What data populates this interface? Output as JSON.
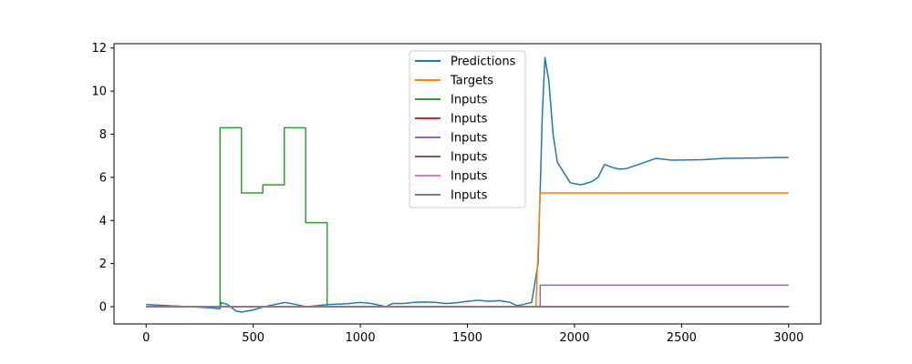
{
  "chart_data": {
    "type": "line",
    "xlim": [
      -150,
      3150
    ],
    "ylim": [
      -0.8,
      12.2
    ],
    "xticks": [
      0,
      500,
      1000,
      1500,
      2000,
      2500,
      3000
    ],
    "yticks": [
      0,
      2,
      4,
      6,
      8,
      10,
      12
    ],
    "xtick_labels": [
      "0",
      "500",
      "1000",
      "1500",
      "2000",
      "2500",
      "3000"
    ],
    "ytick_labels": [
      "0",
      "2",
      "4",
      "6",
      "8",
      "10",
      "12"
    ],
    "grid": false,
    "legend_position": "upper-center",
    "series": [
      {
        "name": "Predictions",
        "color": "#1f77b4",
        "points": [
          [
            0,
            0.1
          ],
          [
            100,
            0.05
          ],
          [
            200,
            0.0
          ],
          [
            300,
            -0.05
          ],
          [
            345,
            -0.1
          ],
          [
            350,
            0.2
          ],
          [
            380,
            0.1
          ],
          [
            420,
            -0.2
          ],
          [
            445,
            -0.25
          ],
          [
            500,
            -0.15
          ],
          [
            550,
            0.0
          ],
          [
            600,
            0.1
          ],
          [
            650,
            0.2
          ],
          [
            700,
            0.1
          ],
          [
            750,
            0.0
          ],
          [
            800,
            0.05
          ],
          [
            850,
            0.1
          ],
          [
            900,
            0.12
          ],
          [
            950,
            0.15
          ],
          [
            1000,
            0.2
          ],
          [
            1050,
            0.15
          ],
          [
            1100,
            0.05
          ],
          [
            1120,
            0.0
          ],
          [
            1150,
            0.15
          ],
          [
            1200,
            0.15
          ],
          [
            1250,
            0.2
          ],
          [
            1300,
            0.22
          ],
          [
            1350,
            0.2
          ],
          [
            1400,
            0.15
          ],
          [
            1450,
            0.18
          ],
          [
            1500,
            0.25
          ],
          [
            1550,
            0.3
          ],
          [
            1600,
            0.25
          ],
          [
            1650,
            0.28
          ],
          [
            1700,
            0.2
          ],
          [
            1730,
            0.05
          ],
          [
            1760,
            0.1
          ],
          [
            1800,
            0.2
          ],
          [
            1830,
            2.0
          ],
          [
            1850,
            9.0
          ],
          [
            1862,
            11.55
          ],
          [
            1880,
            10.5
          ],
          [
            1900,
            8.0
          ],
          [
            1920,
            6.7
          ],
          [
            1980,
            5.75
          ],
          [
            2030,
            5.65
          ],
          [
            2080,
            5.8
          ],
          [
            2110,
            6.0
          ],
          [
            2140,
            6.6
          ],
          [
            2180,
            6.45
          ],
          [
            2210,
            6.38
          ],
          [
            2240,
            6.4
          ],
          [
            2300,
            6.6
          ],
          [
            2380,
            6.88
          ],
          [
            2450,
            6.8
          ],
          [
            2600,
            6.82
          ],
          [
            2700,
            6.88
          ],
          [
            2850,
            6.9
          ],
          [
            2950,
            6.92
          ],
          [
            3000,
            6.92
          ]
        ]
      },
      {
        "name": "Targets",
        "color": "#ff7f0e",
        "points": [
          [
            0,
            0.0
          ],
          [
            1820,
            0.0
          ],
          [
            1840,
            5.28
          ],
          [
            3000,
            5.28
          ]
        ]
      },
      {
        "name": "Inputs",
        "color": "#2ca02c",
        "points": [
          [
            0,
            0.0
          ],
          [
            345,
            0.0
          ],
          [
            345,
            8.3
          ],
          [
            445,
            8.3
          ],
          [
            445,
            5.28
          ],
          [
            545,
            5.28
          ],
          [
            545,
            5.65
          ],
          [
            645,
            5.65
          ],
          [
            645,
            8.3
          ],
          [
            745,
            8.3
          ],
          [
            745,
            3.9
          ],
          [
            845,
            3.9
          ],
          [
            845,
            0.0
          ],
          [
            3000,
            0.0
          ]
        ]
      },
      {
        "name": "Inputs",
        "color": "#d62728",
        "points": [
          [
            0,
            0.0
          ],
          [
            3000,
            0.0
          ]
        ]
      },
      {
        "name": "Inputs",
        "color": "#9467bd",
        "points": [
          [
            0,
            0.0
          ],
          [
            1840,
            0.0
          ],
          [
            1840,
            1.0
          ],
          [
            3000,
            1.0
          ]
        ]
      },
      {
        "name": "Inputs",
        "color": "#8c564b",
        "points": [
          [
            0,
            0.0
          ],
          [
            3000,
            0.0
          ]
        ]
      },
      {
        "name": "Inputs",
        "color": "#e377c2",
        "points": [
          [
            0,
            0.0
          ],
          [
            3000,
            0.0
          ]
        ]
      },
      {
        "name": "Inputs",
        "color": "#7f7f7f",
        "points": [
          [
            0,
            0.0
          ],
          [
            3000,
            0.0
          ]
        ]
      }
    ]
  }
}
